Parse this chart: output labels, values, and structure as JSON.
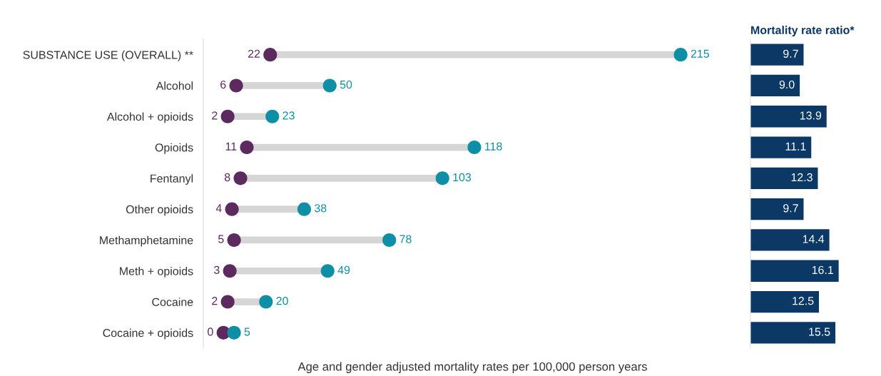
{
  "chart_data": [
    {
      "type": "scatter",
      "orientation": "horizontal",
      "xlabel": "Age and gender adjusted mortality rates per 100,000 person years",
      "categories": [
        "SUBSTANCE USE (OVERALL) **",
        "Alcohol",
        "Alcohol + opioids",
        "Opioids",
        "Fentanyl",
        "Other opioids",
        "Methamphetamine",
        "Meth + opioids",
        "Cocaine",
        "Cocaine + opioids"
      ],
      "tick_labels": "y",
      "color": "#d6d6d6",
      "series": [
        {
          "type": "scatter",
          "color": "#5c2a5f",
          "values": [
            22,
            6,
            2,
            11,
            8,
            4,
            5,
            3,
            2,
            0
          ],
          "value_labels": [
            "22",
            "6",
            "2",
            "11",
            "8",
            "4",
            "5",
            "3",
            "2",
            "0"
          ]
        },
        {
          "type": "scatter",
          "color": "#0f8fa5",
          "values": [
            215,
            50,
            23,
            118,
            103,
            38,
            78,
            49,
            20,
            5
          ],
          "value_labels": [
            "215",
            "50",
            "23",
            "118",
            "103",
            "38",
            "78",
            "49",
            "20",
            "5"
          ]
        }
      ]
    },
    {
      "type": "bar",
      "orientation": "horizontal",
      "title": "Mortality rate ratio*",
      "categories": [
        null,
        null,
        null,
        null,
        null,
        null,
        null,
        null,
        null,
        null
      ],
      "color": "#0c3866",
      "values": [
        9.7,
        9.0,
        13.9,
        11.1,
        12.3,
        9.7,
        14.4,
        16.1,
        12.5,
        15.5
      ],
      "value_labels": [
        "9.7",
        "9.0",
        "13.9",
        "11.1",
        "12.3",
        "9.7",
        "14.4",
        "16.1",
        "12.5",
        "15.5"
      ]
    }
  ]
}
